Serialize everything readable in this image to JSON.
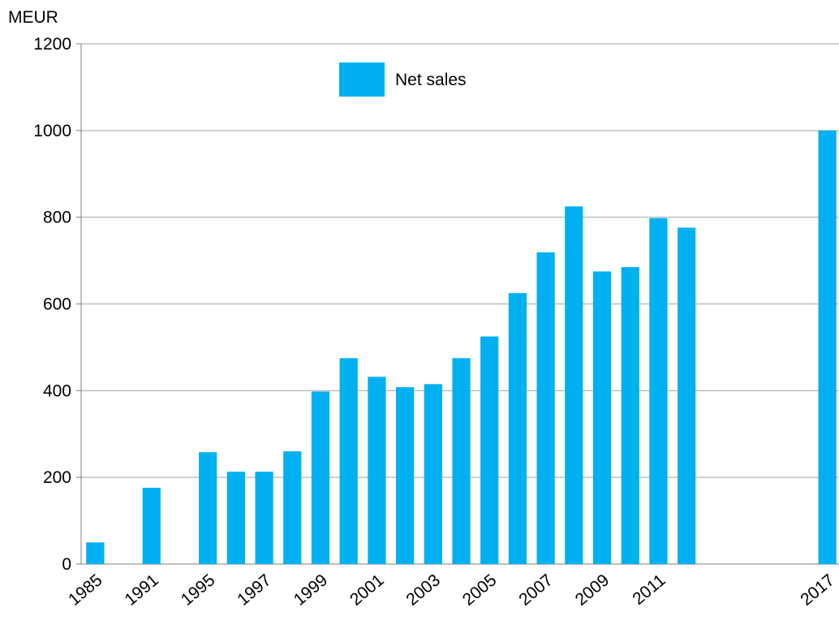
{
  "chart_data": {
    "type": "bar",
    "y_label": "MEUR",
    "categories": [
      "1985",
      null,
      "1991",
      null,
      "1995",
      null,
      "1997",
      null,
      "1999",
      null,
      "2001",
      null,
      "2003",
      null,
      "2005",
      null,
      "2007",
      null,
      "2009",
      null,
      "2011",
      null,
      null,
      null,
      null,
      null,
      "2017"
    ],
    "series": [
      {
        "name": "Net sales",
        "color": "#00b0f0",
        "values": [
          50,
          null,
          176,
          null,
          258,
          213,
          213,
          260,
          398,
          475,
          432,
          408,
          415,
          475,
          525,
          625,
          719,
          825,
          675,
          685,
          798,
          776,
          null,
          null,
          null,
          null,
          1000
        ]
      }
    ],
    "ylim": [
      0,
      1200
    ],
    "yticks": [
      0,
      200,
      400,
      600,
      800,
      1000,
      1200
    ],
    "grid": true,
    "legend": "top"
  }
}
